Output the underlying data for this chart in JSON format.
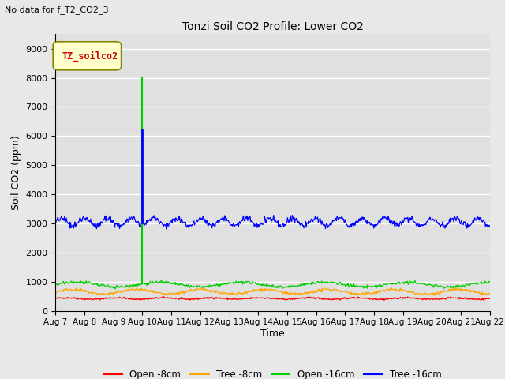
{
  "title": "Tonzi Soil CO2 Profile: Lower CO2",
  "no_data_text": "No data for f_T2_CO2_3",
  "legend_box_text": "TZ_soilco2",
  "ylabel": "Soil CO2 (ppm)",
  "xlabel": "Time",
  "ylim": [
    0,
    9500
  ],
  "background_color": "#e8e8e8",
  "plot_bg_color": "#e0e0e0",
  "series": {
    "open_8cm": {
      "label": "Open -8cm",
      "color": "#ff0000",
      "mean": 420,
      "amplitude": 25,
      "noise": 15
    },
    "tree_8cm": {
      "label": "Tree -8cm",
      "color": "#ffa500",
      "mean": 650,
      "amplitude": 80,
      "noise": 25
    },
    "open_16cm": {
      "label": "Open -16cm",
      "color": "#00cc00",
      "mean": 900,
      "amplitude": 80,
      "noise": 25
    },
    "tree_16cm": {
      "label": "Tree -16cm",
      "color": "#0000ff",
      "mean": 3050,
      "amplitude": 130,
      "noise": 55
    }
  },
  "spike_x_day": 10.0,
  "spike_green_y": 8000,
  "spike_blue_y": 6200,
  "n_points": 720,
  "x_start_day": 7,
  "x_end_day": 22,
  "x_tick_days": [
    7,
    8,
    9,
    10,
    11,
    12,
    13,
    14,
    15,
    16,
    17,
    18,
    19,
    20,
    21,
    22
  ],
  "yticks": [
    0,
    1000,
    2000,
    3000,
    4000,
    5000,
    6000,
    7000,
    8000,
    9000
  ]
}
